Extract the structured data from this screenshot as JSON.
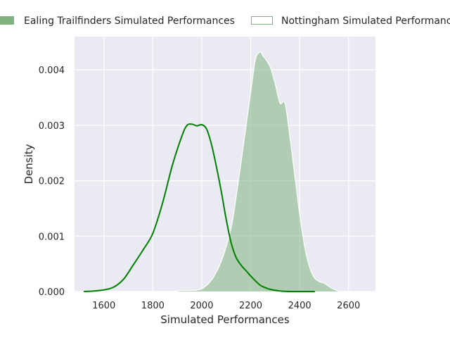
{
  "chart_data": {
    "type": "area",
    "title": "",
    "xlabel": "Simulated Performances",
    "ylabel": "Density",
    "xlim": [
      1480,
      2710
    ],
    "ylim": [
      0,
      0.0046
    ],
    "grid": true,
    "legend_position": "top",
    "x_ticks": [
      "1600",
      "1800",
      "2000",
      "2200",
      "2400",
      "2600"
    ],
    "x_tick_values": [
      1600,
      1800,
      2000,
      2200,
      2400,
      2600
    ],
    "y_ticks": [
      "0.000",
      "0.001",
      "0.002",
      "0.003",
      "0.004"
    ],
    "y_tick_values": [
      0,
      0.001,
      0.002,
      0.003,
      0.004
    ],
    "series": [
      {
        "name": "Ealing Trailfinders Simulated Performances",
        "style": "line",
        "color": "#008000",
        "x": [
          1520,
          1560,
          1600,
          1640,
          1680,
          1720,
          1760,
          1800,
          1840,
          1880,
          1920,
          1940,
          1960,
          1980,
          2000,
          2020,
          2040,
          2060,
          2080,
          2100,
          2120,
          2140,
          2160,
          2180,
          2200,
          2220,
          2240,
          2260,
          2280,
          2320,
          2360,
          2400,
          2440,
          2460
        ],
        "y": [
          0.0,
          1e-05,
          3e-05,
          8e-05,
          0.00022,
          0.00048,
          0.00075,
          0.00105,
          0.0016,
          0.00228,
          0.00282,
          0.003,
          0.00302,
          0.00299,
          0.00301,
          0.00293,
          0.00265,
          0.00225,
          0.0018,
          0.0013,
          0.00088,
          0.00062,
          0.00048,
          0.00038,
          0.00028,
          0.00019,
          0.00011,
          7e-05,
          4e-05,
          1e-05,
          0.0,
          0.0,
          0.0,
          0.0
        ]
      },
      {
        "name": "Nottingham Simulated Performances",
        "style": "filled",
        "color": "#7fb27f",
        "x": [
          1850,
          1880,
          1920,
          1960,
          2000,
          2040,
          2080,
          2120,
          2150,
          2180,
          2200,
          2220,
          2240,
          2250,
          2260,
          2280,
          2300,
          2320,
          2340,
          2360,
          2380,
          2400,
          2420,
          2440,
          2460,
          2480,
          2500,
          2520,
          2540,
          2560,
          2600,
          2660
        ],
        "y": [
          0.0,
          0.0,
          2e-05,
          2e-05,
          5e-05,
          0.00021,
          0.00055,
          0.00115,
          0.002,
          0.00295,
          0.0036,
          0.0042,
          0.00432,
          0.00425,
          0.0042,
          0.00405,
          0.00375,
          0.0034,
          0.0034,
          0.0028,
          0.0021,
          0.0014,
          0.00082,
          0.00045,
          0.00025,
          0.00018,
          0.00015,
          9e-05,
          4e-05,
          1e-05,
          0.0,
          0.0
        ]
      }
    ]
  }
}
